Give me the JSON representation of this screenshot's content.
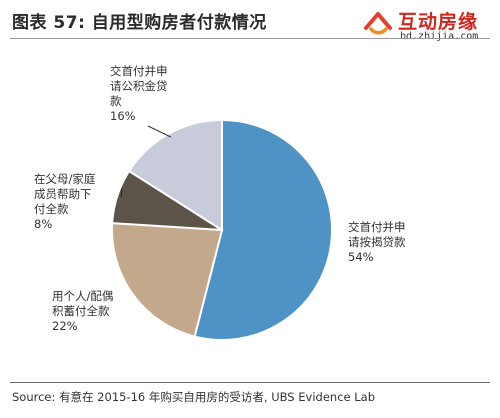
{
  "header": {
    "title": "图表 57: 自用型购房者付款情况"
  },
  "logo": {
    "name": "互动房缘",
    "url": "bd.zhijia.com"
  },
  "footer": {
    "source": "Source:  有意在 2015-16 年购买自用房的受访者, UBS Evidence Lab"
  },
  "chart_data": {
    "type": "pie",
    "title": "图表 57: 自用型购房者付款情况",
    "slices": [
      {
        "label_lines": [
          "交首付并申",
          "请按揭贷款"
        ],
        "value": 54,
        "pct_label": "54%",
        "color": "#4f93c6"
      },
      {
        "label_lines": [
          "用个人/配偶",
          "积蓄付全款"
        ],
        "value": 22,
        "pct_label": "22%",
        "color": "#c3a88c"
      },
      {
        "label_lines": [
          "在父母/家庭",
          "成员帮助下",
          "付全款"
        ],
        "value": 8,
        "pct_label": "8%",
        "color": "#5c5448"
      },
      {
        "label_lines": [
          "交首付并申",
          "请公积金贷",
          "款"
        ],
        "value": 16,
        "pct_label": "16%",
        "color": "#c8ccda"
      }
    ]
  }
}
